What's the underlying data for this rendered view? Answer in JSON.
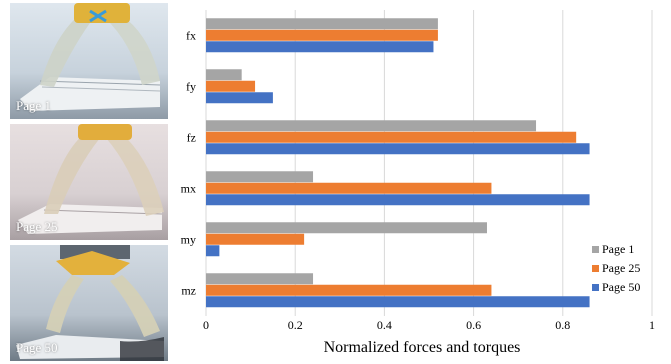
{
  "photos": [
    {
      "caption": "Page 1"
    },
    {
      "caption": "Page 25"
    },
    {
      "caption": "Page 50"
    }
  ],
  "colors": {
    "page1": "#a5a5a5",
    "page25": "#ed7d31",
    "page50": "#4472c4",
    "grid": "#d9d9d9"
  },
  "chart_data": {
    "type": "bar",
    "orientation": "horizontal",
    "categories": [
      "fx",
      "fy",
      "fz",
      "mx",
      "my",
      "mz"
    ],
    "series": [
      {
        "name": "Page 1",
        "color": "#a5a5a5",
        "values": [
          0.52,
          0.08,
          0.74,
          0.24,
          0.63,
          0.24
        ]
      },
      {
        "name": "Page 25",
        "color": "#ed7d31",
        "values": [
          0.52,
          0.11,
          0.83,
          0.64,
          0.22,
          0.64
        ]
      },
      {
        "name": "Page 50",
        "color": "#4472c4",
        "values": [
          0.51,
          0.15,
          0.86,
          0.86,
          0.03,
          0.86
        ]
      }
    ],
    "xlabel": "Normalized forces and torques",
    "xlim": [
      0,
      1
    ],
    "xticks": [
      "0",
      "0.2",
      "0.4",
      "0.6",
      "0.8",
      "1"
    ],
    "grid": true,
    "legend_position": "bottom-right"
  }
}
